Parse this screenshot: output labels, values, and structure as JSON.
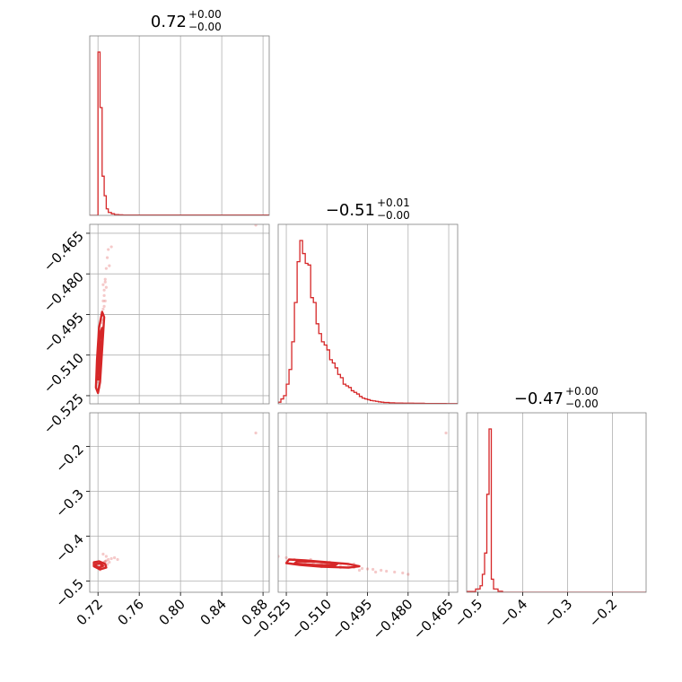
{
  "chart_data": {
    "type": "corner",
    "color": "#d62728",
    "grid": true,
    "parameters": [
      {
        "title_value": "0.72",
        "title_plus": "+0.00",
        "title_minus": "−0.00",
        "range": [
          0.712,
          0.886
        ],
        "ticks": [
          {
            "v": 0.72,
            "label": "0.72"
          },
          {
            "v": 0.76,
            "label": "0.76"
          },
          {
            "v": 0.8,
            "label": "0.80"
          },
          {
            "v": 0.84,
            "label": "0.84"
          },
          {
            "v": 0.88,
            "label": "0.88"
          }
        ]
      },
      {
        "title_value": "−0.51",
        "title_plus": "+0.01",
        "title_minus": "−0.00",
        "range": [
          -0.528,
          -0.4617
        ],
        "ticks": [
          {
            "v": -0.525,
            "label": "−0.525"
          },
          {
            "v": -0.51,
            "label": "−0.510"
          },
          {
            "v": -0.495,
            "label": "−0.495"
          },
          {
            "v": -0.48,
            "label": "−0.480"
          },
          {
            "v": -0.465,
            "label": "−0.465"
          }
        ]
      },
      {
        "title_value": "−0.47",
        "title_plus": "+0.00",
        "title_minus": "−0.00",
        "range": [
          -0.525,
          -0.125
        ],
        "ticks": [
          {
            "v": -0.5,
            "label": "−0.5"
          },
          {
            "v": -0.4,
            "label": "−0.4"
          },
          {
            "v": -0.3,
            "label": "−0.3"
          },
          {
            "v": -0.2,
            "label": "−0.2"
          }
        ]
      }
    ],
    "y_ticks": {
      "row1": [
        {
          "v": -0.465,
          "label": "−0.465"
        },
        {
          "v": -0.48,
          "label": "−0.480"
        },
        {
          "v": -0.495,
          "label": "−0.495"
        },
        {
          "v": -0.51,
          "label": "−0.510"
        },
        {
          "v": -0.525,
          "label": "−0.525"
        }
      ],
      "row2": [
        {
          "v": -0.2,
          "label": "−0.2"
        },
        {
          "v": -0.3,
          "label": "−0.3"
        },
        {
          "v": -0.4,
          "label": "−0.4"
        },
        {
          "v": -0.5,
          "label": "−0.5"
        }
      ]
    },
    "histograms": [
      {
        "param": 0,
        "bin_edges": [
          0.712,
          0.716,
          0.718,
          0.72,
          0.722,
          0.724,
          0.726,
          0.728,
          0.73,
          0.733,
          0.736,
          0.74,
          0.744,
          0.886
        ],
        "counts": [
          0,
          0,
          0,
          1.0,
          0.66,
          0.24,
          0.12,
          0.04,
          0.018,
          0.01,
          0.005,
          0.003,
          0.002
        ]
      },
      {
        "param": 1,
        "bin_edges": [
          -0.528,
          -0.527,
          -0.526,
          -0.525,
          -0.524,
          -0.523,
          -0.522,
          -0.521,
          -0.52,
          -0.519,
          -0.518,
          -0.517,
          -0.516,
          -0.515,
          -0.514,
          -0.513,
          -0.512,
          -0.511,
          -0.51,
          -0.509,
          -0.508,
          -0.507,
          -0.506,
          -0.505,
          -0.504,
          -0.503,
          -0.502,
          -0.501,
          -0.5,
          -0.499,
          -0.498,
          -0.497,
          -0.496,
          -0.495,
          -0.494,
          -0.493,
          -0.492,
          -0.491,
          -0.49,
          -0.489,
          -0.488,
          -0.487,
          -0.486,
          -0.485,
          -0.484,
          -0.482,
          -0.48,
          -0.478,
          -0.476,
          -0.474,
          -0.472,
          -0.47,
          -0.468,
          -0.466,
          -0.4617
        ],
        "counts": [
          0.01,
          0.03,
          0.05,
          0.12,
          0.21,
          0.38,
          0.62,
          0.87,
          1.0,
          0.92,
          0.86,
          0.85,
          0.65,
          0.62,
          0.49,
          0.43,
          0.38,
          0.36,
          0.33,
          0.27,
          0.25,
          0.22,
          0.18,
          0.16,
          0.12,
          0.11,
          0.1,
          0.08,
          0.07,
          0.06,
          0.045,
          0.035,
          0.03,
          0.025,
          0.02,
          0.018,
          0.015,
          0.012,
          0.01,
          0.008,
          0.008,
          0.006,
          0.006,
          0.005,
          0.005,
          0.004,
          0.004,
          0.003,
          0.003,
          0.002,
          0.002,
          0.002,
          0.002,
          0.001
        ]
      },
      {
        "param": 2,
        "bin_edges": [
          -0.525,
          -0.505,
          -0.495,
          -0.49,
          -0.485,
          -0.48,
          -0.475,
          -0.47,
          -0.465,
          -0.455,
          -0.445,
          -0.125
        ],
        "counts": [
          0.005,
          0.02,
          0.04,
          0.11,
          0.24,
          0.6,
          1.0,
          0.08,
          0.02,
          0.006,
          0.0
        ]
      }
    ],
    "scatter_2d": [
      {
        "x_param": 0,
        "y_param": 1,
        "points": [
          [
            0.72,
            -0.515
          ],
          [
            0.721,
            -0.512
          ],
          [
            0.722,
            -0.508
          ],
          [
            0.721,
            -0.518
          ],
          [
            0.72,
            -0.52
          ],
          [
            0.722,
            -0.502
          ],
          [
            0.723,
            -0.498
          ],
          [
            0.724,
            -0.495
          ],
          [
            0.725,
            -0.49
          ],
          [
            0.726,
            -0.486
          ],
          [
            0.727,
            -0.483
          ],
          [
            0.724,
            -0.5
          ],
          [
            0.723,
            -0.505
          ],
          [
            0.721,
            -0.522
          ],
          [
            0.722,
            -0.51
          ],
          [
            0.725,
            -0.493
          ],
          [
            0.726,
            -0.488
          ],
          [
            0.727,
            -0.482
          ],
          [
            0.728,
            -0.478
          ],
          [
            0.729,
            -0.474
          ],
          [
            0.73,
            -0.471
          ],
          [
            0.726,
            -0.492
          ],
          [
            0.724,
            -0.497
          ],
          [
            0.723,
            -0.503
          ],
          [
            0.722,
            -0.513
          ],
          [
            0.728,
            -0.485
          ],
          [
            0.731,
            -0.477
          ],
          [
            0.733,
            -0.47
          ],
          [
            0.725,
            -0.484
          ],
          [
            0.727,
            -0.49
          ],
          [
            0.719,
            -0.517
          ],
          [
            0.72,
            -0.509
          ],
          [
            0.724,
            -0.506
          ],
          [
            0.873,
            -0.462
          ]
        ],
        "contours": [
          [
            [
              0.718,
              -0.522
            ],
            [
              0.719,
              -0.512
            ],
            [
              0.721,
              -0.5
            ],
            [
              0.724,
              -0.494
            ],
            [
              0.726,
              -0.496
            ],
            [
              0.724,
              -0.508
            ],
            [
              0.722,
              -0.52
            ],
            [
              0.72,
              -0.524
            ]
          ],
          [
            [
              0.719,
              -0.519
            ],
            [
              0.72,
              -0.51
            ],
            [
              0.722,
              -0.502
            ],
            [
              0.724,
              -0.5
            ],
            [
              0.723,
              -0.51
            ],
            [
              0.721,
              -0.519
            ]
          ],
          [
            [
              0.7195,
              -0.516
            ],
            [
              0.7205,
              -0.508
            ],
            [
              0.722,
              -0.505
            ],
            [
              0.7222,
              -0.511
            ],
            [
              0.721,
              -0.517
            ]
          ]
        ]
      },
      {
        "x_param": 0,
        "y_param": 2,
        "points": [
          [
            0.718,
            -0.462
          ],
          [
            0.719,
            -0.466
          ],
          [
            0.72,
            -0.47
          ],
          [
            0.721,
            -0.472
          ],
          [
            0.722,
            -0.468
          ],
          [
            0.723,
            -0.465
          ],
          [
            0.724,
            -0.462
          ],
          [
            0.725,
            -0.46
          ],
          [
            0.726,
            -0.458
          ],
          [
            0.727,
            -0.456
          ],
          [
            0.728,
            -0.455
          ],
          [
            0.73,
            -0.452
          ],
          [
            0.733,
            -0.45
          ],
          [
            0.736,
            -0.448
          ],
          [
            0.739,
            -0.452
          ],
          [
            0.731,
            -0.458
          ],
          [
            0.729,
            -0.463
          ],
          [
            0.726,
            -0.467
          ],
          [
            0.724,
            -0.47
          ],
          [
            0.722,
            -0.475
          ],
          [
            0.725,
            -0.44
          ],
          [
            0.728,
            -0.445
          ],
          [
            0.72,
            -0.458
          ],
          [
            0.873,
            -0.17
          ]
        ],
        "contours": [
          [
            [
              0.716,
              -0.458
            ],
            [
              0.721,
              -0.456
            ],
            [
              0.727,
              -0.462
            ],
            [
              0.728,
              -0.47
            ],
            [
              0.722,
              -0.474
            ],
            [
              0.716,
              -0.467
            ]
          ],
          [
            [
              0.718,
              -0.462
            ],
            [
              0.722,
              -0.461
            ],
            [
              0.725,
              -0.466
            ],
            [
              0.721,
              -0.47
            ],
            [
              0.718,
              -0.467
            ]
          ]
        ]
      },
      {
        "x_param": 1,
        "y_param": 2,
        "points": [
          [
            -0.528,
            -0.445
          ],
          [
            -0.525,
            -0.448
          ],
          [
            -0.522,
            -0.452
          ],
          [
            -0.52,
            -0.455
          ],
          [
            -0.518,
            -0.458
          ],
          [
            -0.515,
            -0.46
          ],
          [
            -0.512,
            -0.462
          ],
          [
            -0.51,
            -0.463
          ],
          [
            -0.507,
            -0.465
          ],
          [
            -0.505,
            -0.466
          ],
          [
            -0.502,
            -0.468
          ],
          [
            -0.5,
            -0.47
          ],
          [
            -0.497,
            -0.472
          ],
          [
            -0.495,
            -0.473
          ],
          [
            -0.493,
            -0.474
          ],
          [
            -0.49,
            -0.476
          ],
          [
            -0.488,
            -0.478
          ],
          [
            -0.485,
            -0.48
          ],
          [
            -0.482,
            -0.482
          ],
          [
            -0.48,
            -0.485
          ],
          [
            -0.512,
            -0.468
          ],
          [
            -0.505,
            -0.47
          ],
          [
            -0.498,
            -0.476
          ],
          [
            -0.492,
            -0.48
          ],
          [
            -0.516,
            -0.452
          ],
          [
            -0.509,
            -0.458
          ],
          [
            -0.5,
            -0.462
          ],
          [
            -0.466,
            -0.17
          ]
        ],
        "contours": [
          [
            [
              -0.524,
              -0.452
            ],
            [
              -0.518,
              -0.454
            ],
            [
              -0.51,
              -0.458
            ],
            [
              -0.502,
              -0.462
            ],
            [
              -0.498,
              -0.467
            ],
            [
              -0.502,
              -0.47
            ],
            [
              -0.512,
              -0.468
            ],
            [
              -0.52,
              -0.464
            ],
            [
              -0.525,
              -0.46
            ]
          ],
          [
            [
              -0.521,
              -0.456
            ],
            [
              -0.514,
              -0.457
            ],
            [
              -0.506,
              -0.461
            ],
            [
              -0.507,
              -0.465
            ],
            [
              -0.515,
              -0.464
            ],
            [
              -0.522,
              -0.461
            ]
          ]
        ]
      }
    ]
  }
}
